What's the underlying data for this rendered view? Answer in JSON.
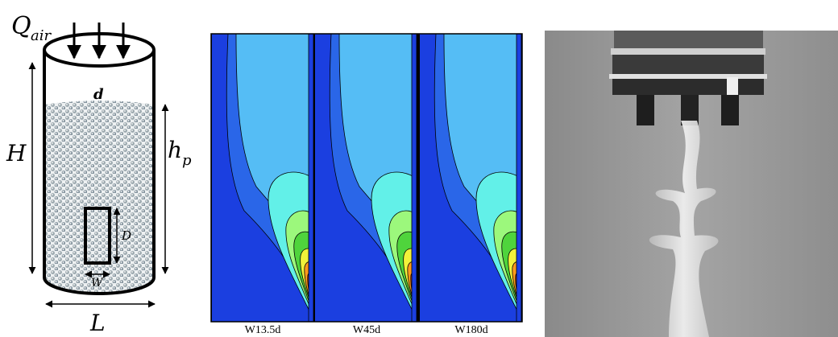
{
  "schematic": {
    "flow": {
      "symbol": "Q",
      "subscript": "air"
    },
    "particle_diameter": "d",
    "height": "H",
    "bed_height": {
      "symbol": "h",
      "subscript": "p"
    },
    "window_height": "D",
    "window_width": "W",
    "length": "L"
  },
  "simulations": {
    "panels": [
      {
        "label": "W13.5d"
      },
      {
        "label": "W45d"
      },
      {
        "label": "W180d"
      }
    ]
  }
}
